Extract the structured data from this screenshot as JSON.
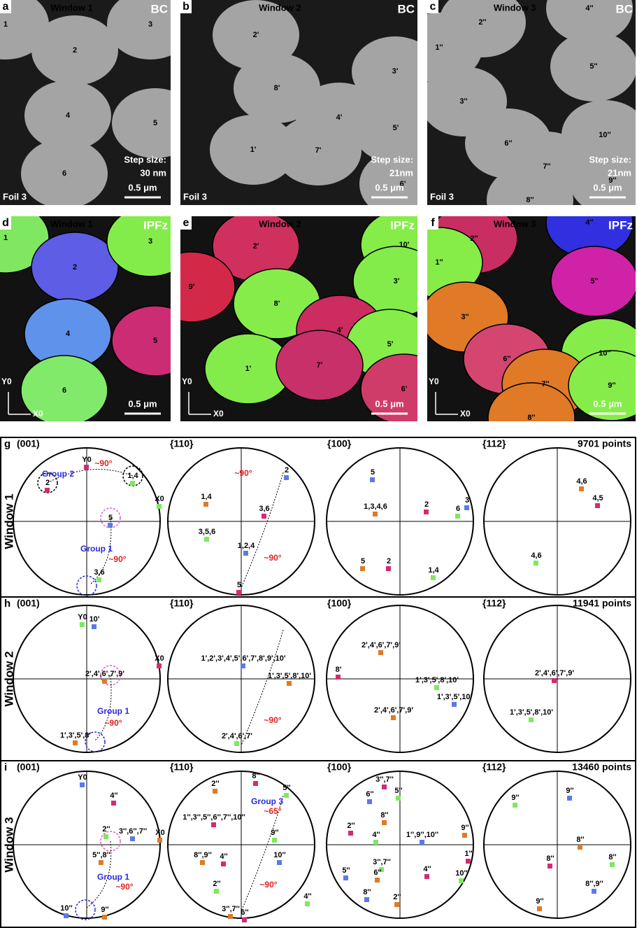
{
  "images": [
    {
      "letter": "a",
      "title": "Window 1",
      "mode": "BC",
      "grains": [
        "1",
        "2",
        "3",
        "4",
        "5",
        "6"
      ],
      "step_label": "Step size:",
      "step": "30 nm",
      "foil": "Foil 3",
      "scale": "0.5 μm"
    },
    {
      "letter": "b",
      "title": "Window 2",
      "mode": "BC",
      "grains": [
        "2'",
        "3'",
        "8'",
        "4'",
        "5'",
        "1'",
        "7'",
        "6'"
      ],
      "step_label": "Step size:",
      "step": "21nm",
      "foil": "Foil 3",
      "scale": "0.5 μm"
    },
    {
      "letter": "c",
      "title": "Window 3",
      "mode": "BC",
      "grains": [
        "2''",
        "1''",
        "4''",
        "5''",
        "3''",
        "10''",
        "6''",
        "7''",
        "9''",
        "8''"
      ],
      "step_label": "Step size:",
      "step": "21nm",
      "foil": "Foil 3",
      "scale": "0.5 μm"
    },
    {
      "letter": "d",
      "title": "Window 1",
      "mode": "IPFz",
      "grains": [
        "1",
        "2",
        "3",
        "4",
        "5",
        "6"
      ],
      "y_axis": "Y0",
      "x_axis": "X0",
      "scale": "0.5 μm"
    },
    {
      "letter": "e",
      "title": "Window 2",
      "mode": "IPFz",
      "grains": [
        "2'",
        "10'",
        "9'",
        "3'",
        "8'",
        "4'",
        "5'",
        "1'",
        "7'",
        "6'"
      ],
      "y_axis": "Y0",
      "x_axis": "X0",
      "scale": "0.5 μm"
    },
    {
      "letter": "f",
      "title": "Window 3",
      "mode": "IPFz",
      "grains": [
        "2''",
        "1''",
        "4''",
        "5''",
        "3''",
        "10''",
        "6''",
        "7''",
        "9''",
        "8''"
      ],
      "y_axis": "Y0",
      "x_axis": "X0",
      "scale": "0.5 μm"
    }
  ],
  "pole_figures": [
    {
      "letter": "g",
      "window": "Window 1",
      "headers": [
        "(001)",
        "{110}",
        "{100}",
        "{112}"
      ],
      "points": "9701 points",
      "plots": [
        [
          "Y0",
          "X0",
          "Group 2",
          "~90°",
          "2",
          "1,4",
          "5",
          "Group 1",
          "~90°",
          "3,6"
        ],
        [
          "~90°",
          "2",
          "1,4",
          "3,6",
          "3,5,6",
          "1,2,4",
          "~90°",
          "5"
        ],
        [
          "5",
          "1,3,4,6",
          "2",
          "6",
          "3",
          "5",
          "2",
          "1,4"
        ],
        [
          "4,6",
          "4,5",
          "4,6"
        ]
      ]
    },
    {
      "letter": "h",
      "window": "Window 2",
      "headers": [
        "(001)",
        "{110}",
        "{100}",
        "{112}"
      ],
      "points": "11941 points",
      "plots": [
        [
          "Y0",
          "10'",
          "2',4',6',7',9'",
          "X0",
          "Group 1",
          "~90°",
          "1',3',5',8'"
        ],
        [
          "1',2',3',4',5',6',7',8',9',10'",
          "1',3',5',8',10'",
          "~90°",
          "2',4',6',7'"
        ],
        [
          "2',4',6',7',9'",
          "8'",
          "1',3',5',8',10'",
          "1',3',5',10'",
          "2',4',6',7',9'"
        ],
        [
          "2',4',6',7',9'",
          "1',3',5',8',10'"
        ]
      ]
    },
    {
      "letter": "i",
      "window": "Window 3",
      "headers": [
        "(001)",
        "{110}",
        "{100}",
        "{112}"
      ],
      "points": "13460 points",
      "plots": [
        [
          "Y0",
          "X0",
          "4''",
          "2''",
          "3'',6'',7''",
          "5'',8''",
          "Group 1",
          "~90°",
          "10''",
          "9''"
        ],
        [
          "2''",
          "8''",
          "5''",
          "Group 3",
          "~65°",
          "1'',3'',5'',6'',7'',10''",
          "9''",
          "10''",
          "8'',9''",
          "4''",
          "2''",
          "~90°",
          "3'',7''",
          "6''",
          "4''"
        ],
        [
          "3'',7''",
          "5''",
          "6''",
          "8''",
          "2''",
          "4''",
          "1'',9'',10''",
          "9''",
          "1''",
          "3'',7''",
          "5''",
          "6''",
          "4''",
          "10''",
          "8''",
          "2''"
        ],
        [
          "9''",
          "9''",
          "8''",
          "8''",
          "8''",
          "8'',9''",
          "9''"
        ]
      ]
    }
  ]
}
